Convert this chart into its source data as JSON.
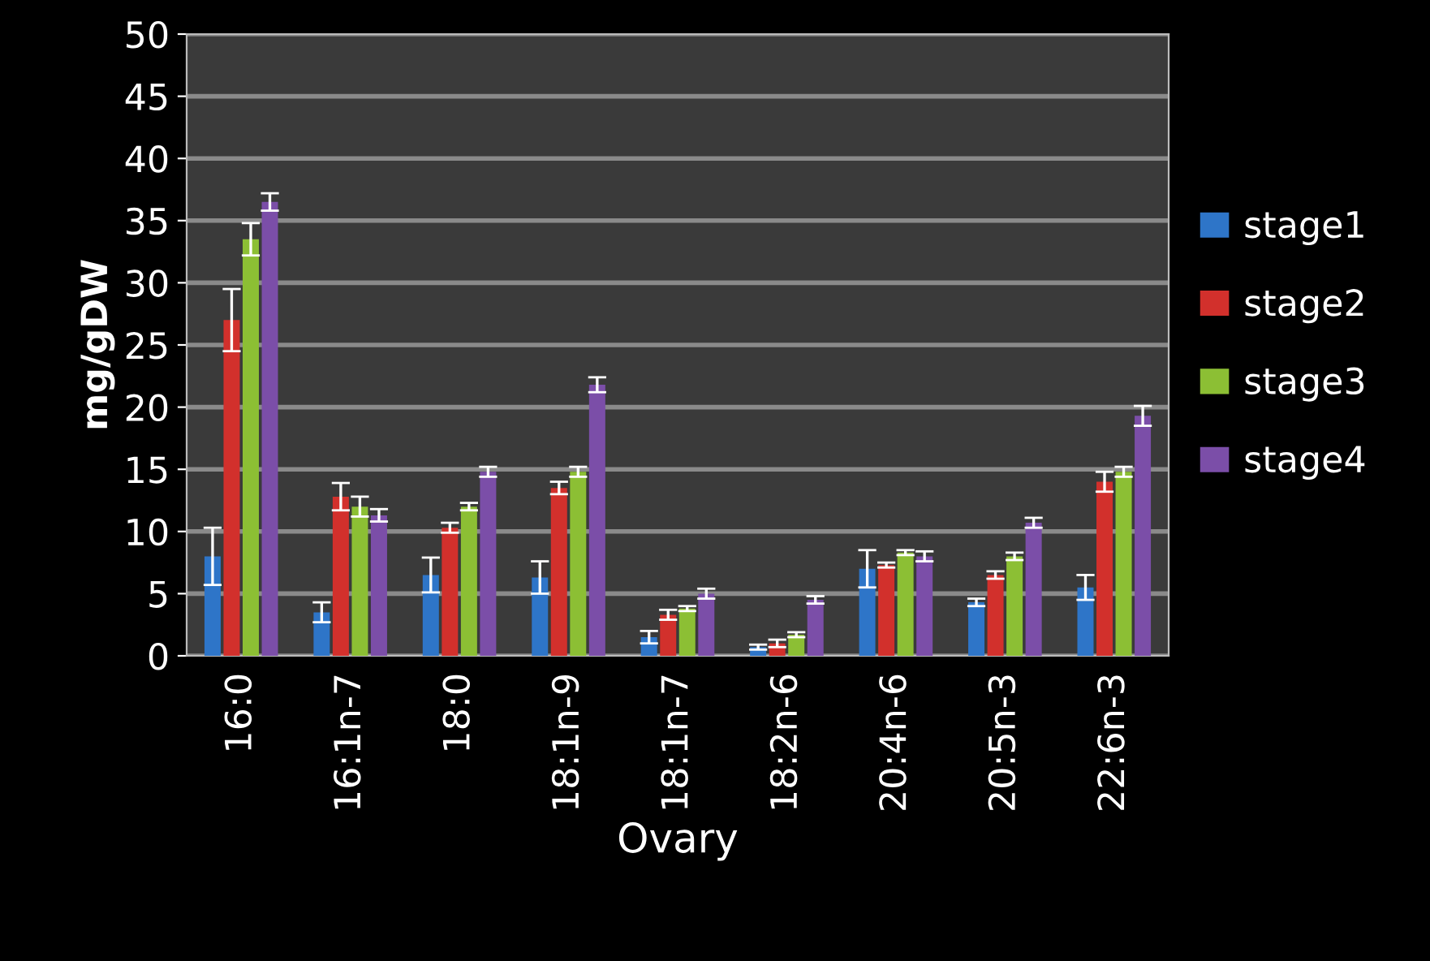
{
  "chart_data": {
    "type": "bar",
    "xlabel": "Ovary",
    "ylabel": "mg/gDW",
    "categories": [
      "16:0",
      "16:1n-7",
      "18:0",
      "18:1n-9",
      "18:1n-7",
      "18:2n-6",
      "20:4n-6",
      "20:5n-3",
      "22:6n-3"
    ],
    "series": [
      {
        "name": "stage1",
        "color": "#2e75c8",
        "values": [
          8,
          3.5,
          6.5,
          6.3,
          1.5,
          0.7,
          7,
          4.3,
          5.5
        ],
        "errors": [
          2.3,
          0.8,
          1.4,
          1.3,
          0.5,
          0.2,
          1.5,
          0.3,
          1
        ]
      },
      {
        "name": "stage2",
        "color": "#d2302c",
        "values": [
          27,
          12.8,
          10.3,
          13.5,
          3.3,
          1,
          7.3,
          6.5,
          14
        ],
        "errors": [
          2.5,
          1.1,
          0.4,
          0.5,
          0.4,
          0.3,
          0.2,
          0.3,
          0.8
        ]
      },
      {
        "name": "stage3",
        "color": "#8cbf34",
        "values": [
          33.5,
          12,
          12,
          14.8,
          3.8,
          1.7,
          8.3,
          8,
          14.8
        ],
        "errors": [
          1.3,
          0.8,
          0.3,
          0.4,
          0.2,
          0.2,
          0.2,
          0.3,
          0.4
        ]
      },
      {
        "name": "stage4",
        "color": "#7b4ea8",
        "values": [
          36.5,
          11.3,
          14.8,
          21.8,
          5,
          4.5,
          8,
          10.7,
          19.3
        ],
        "errors": [
          0.7,
          0.5,
          0.4,
          0.6,
          0.4,
          0.3,
          0.4,
          0.4,
          0.8
        ]
      }
    ],
    "ylim": [
      0,
      50
    ],
    "yticks": [
      0,
      5,
      10,
      15,
      20,
      25,
      30,
      35,
      40,
      45,
      50
    ],
    "grid": "y",
    "legend": "right"
  }
}
